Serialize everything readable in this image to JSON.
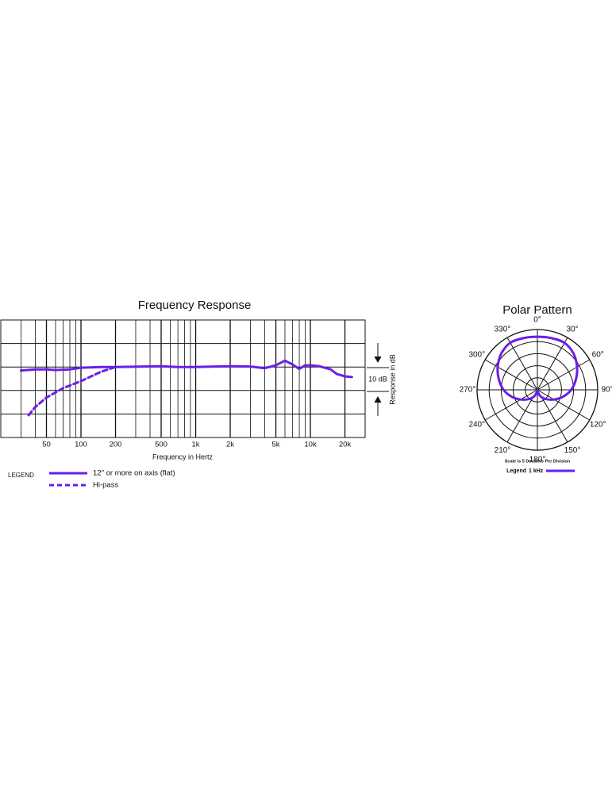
{
  "chart_data": [
    {
      "type": "line",
      "title": "Frequency Response",
      "xlabel": "Frequency in Hertz",
      "ylabel": "Response in dB",
      "annotation": "10 dB",
      "log_x": true,
      "xlim": [
        20,
        30000
      ],
      "xticks": [
        50,
        100,
        200,
        500,
        {
          "value": 1000,
          "label": "1k"
        },
        {
          "value": 2000,
          "label": "2k"
        },
        {
          "value": 5000,
          "label": "5k"
        },
        {
          "value": 10000,
          "label": "10k"
        },
        {
          "value": 20000,
          "label": "20k"
        }
      ],
      "minor_xticks": [
        30,
        40,
        60,
        70,
        80,
        90,
        300,
        400,
        600,
        700,
        800,
        900,
        3000,
        4000,
        6000,
        7000,
        8000,
        9000
      ],
      "ylim": [
        -30,
        20
      ],
      "yticks": [
        -20,
        -10,
        0,
        10
      ],
      "grid": true,
      "legend_title": "LEGEND",
      "series": [
        {
          "name": "12\" or more on axis (flat)",
          "color": "#6a1fe6",
          "dashed": false,
          "x": [
            30,
            40,
            50,
            60,
            80,
            100,
            150,
            200,
            500,
            700,
            1000,
            1500,
            2000,
            3000,
            4000,
            5000,
            6000,
            7000,
            8000,
            9000,
            10000,
            12000,
            15000,
            17000,
            20000,
            23000
          ],
          "values": [
            -1.5,
            -1,
            -1,
            -1.3,
            -1,
            -0.3,
            0,
            0,
            0.3,
            0,
            0,
            0.2,
            0.3,
            0.2,
            -0.5,
            0.7,
            2.7,
            1,
            -0.8,
            0.7,
            0.7,
            0.3,
            -1,
            -3,
            -4,
            -4.3
          ]
        },
        {
          "name": "Hi-pass",
          "color": "#6a1fe6",
          "dashed": true,
          "x": [
            35,
            40,
            50,
            70,
            100,
            150,
            200
          ],
          "values": [
            -20.5,
            -17,
            -13,
            -9,
            -6,
            -2,
            0
          ]
        }
      ]
    },
    {
      "type": "polar",
      "title": "Polar Pattern",
      "note": "Scale is 5 Decibels Per Division",
      "legend_title": "Legend",
      "rlim": [
        -25,
        0
      ],
      "rticks": [
        -20,
        -15,
        -10,
        -5
      ],
      "thetaticks": [
        {
          "value": 0,
          "label": "0°"
        },
        {
          "value": 30,
          "label": "30°"
        },
        {
          "value": 60,
          "label": "60°"
        },
        {
          "value": 90,
          "label": "90°"
        },
        {
          "value": 120,
          "label": "120°"
        },
        {
          "value": 150,
          "label": "150°"
        },
        {
          "value": 180,
          "label": "180°"
        },
        {
          "value": 210,
          "label": "210°"
        },
        {
          "value": 240,
          "label": "240°"
        },
        {
          "value": 270,
          "label": "270°"
        },
        {
          "value": 300,
          "label": "300°"
        },
        {
          "value": 330,
          "label": "330°"
        }
      ],
      "series": [
        {
          "name": "1 kHz",
          "color": "#6a1fe6",
          "theta": [
            0,
            15,
            30,
            45,
            60,
            75,
            90,
            105,
            120,
            135,
            150,
            165,
            180,
            195,
            210,
            225,
            240,
            255,
            270,
            285,
            300,
            315,
            330,
            345
          ],
          "values": [
            -3,
            -2.8,
            -2.5,
            -3.8,
            -6,
            -8.5,
            -11,
            -14,
            -17,
            -19.5,
            -21.5,
            -23.5,
            -25,
            -23.5,
            -21.5,
            -19.5,
            -17,
            -14,
            -11,
            -8.5,
            -6,
            -3.8,
            -2.5,
            -2.8
          ]
        }
      ]
    }
  ]
}
